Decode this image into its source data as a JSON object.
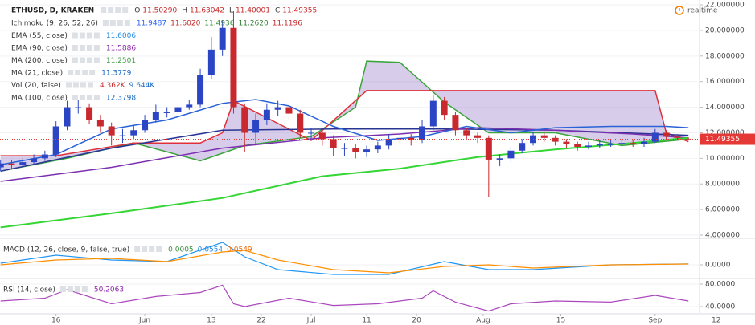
{
  "status": "realtime",
  "chart_data": [
    {
      "type": "candlestick",
      "title": "ETHUSD, D, KRAKEN",
      "ohlc": [
        {
          "label": "O",
          "value": "11.50290"
        },
        {
          "label": "H",
          "value": "11.63042"
        },
        {
          "label": "L",
          "value": "11.40001"
        },
        {
          "label": "C",
          "value": "11.49355"
        }
      ],
      "open": [
        9.3,
        9.6,
        9.5,
        9.7,
        10.0,
        10.3,
        12.5,
        14.0,
        14.0,
        13.0,
        12.5,
        11.8,
        11.8,
        12.2,
        13.0,
        13.6,
        13.6,
        14.0,
        14.2,
        16.5,
        18.5,
        20.2,
        14.0,
        12.0,
        13.0,
        13.8,
        14.0,
        13.5,
        12.0,
        12.0,
        11.5,
        10.8,
        10.8,
        10.5,
        10.7,
        11.0,
        11.5,
        11.6,
        11.4,
        12.5,
        14.5,
        13.4,
        12.2,
        11.8,
        11.6,
        9.9,
        10.0,
        10.6,
        11.2,
        11.8,
        11.6,
        11.3,
        11.1,
        10.9,
        11.0,
        11.1,
        11.1,
        11.2,
        11.1,
        11.3,
        12.0,
        11.7,
        11.5029
      ],
      "high": [
        9.9,
        9.9,
        10.0,
        10.3,
        10.6,
        12.9,
        14.5,
        14.6,
        14.3,
        13.4,
        12.8,
        12.3,
        12.6,
        13.4,
        14.2,
        14.0,
        14.3,
        14.6,
        17.0,
        19.5,
        20.8,
        21.5,
        14.3,
        13.5,
        14.3,
        14.5,
        14.3,
        13.8,
        12.4,
        12.2,
        11.8,
        11.2,
        11.1,
        11.0,
        11.3,
        11.9,
        12.0,
        11.9,
        13.0,
        15.0,
        14.8,
        13.6,
        12.4,
        12.0,
        11.8,
        10.3,
        10.9,
        11.5,
        12.1,
        12.0,
        11.8,
        11.5,
        11.3,
        11.3,
        11.4,
        11.4,
        11.4,
        11.4,
        11.6,
        12.3,
        12.2,
        11.9,
        11.63042
      ],
      "low": [
        9.0,
        9.2,
        9.3,
        9.5,
        9.8,
        10.1,
        12.2,
        13.5,
        12.7,
        12.0,
        11.0,
        11.2,
        11.5,
        12.0,
        12.8,
        13.2,
        13.3,
        13.8,
        14.0,
        16.2,
        18.0,
        13.5,
        10.5,
        11.0,
        12.6,
        13.3,
        13.0,
        11.6,
        11.5,
        11.0,
        10.2,
        10.2,
        10.0,
        10.1,
        10.4,
        10.7,
        11.2,
        11.0,
        11.2,
        12.2,
        13.0,
        11.8,
        11.4,
        11.2,
        7.0,
        9.4,
        9.7,
        10.4,
        11.0,
        11.3,
        11.0,
        10.8,
        10.6,
        10.7,
        10.8,
        10.9,
        10.9,
        10.9,
        10.9,
        11.2,
        11.4,
        11.4,
        11.40001
      ],
      "close": [
        9.6,
        9.5,
        9.7,
        10.0,
        10.3,
        12.5,
        14.0,
        14.0,
        13.0,
        12.5,
        11.8,
        11.8,
        12.2,
        13.0,
        13.6,
        13.6,
        14.0,
        14.2,
        16.5,
        18.5,
        20.2,
        14.0,
        12.0,
        13.0,
        13.8,
        14.0,
        13.5,
        12.0,
        12.0,
        11.5,
        10.8,
        10.8,
        10.5,
        10.7,
        11.0,
        11.5,
        11.6,
        11.4,
        12.5,
        14.5,
        13.4,
        12.2,
        11.8,
        11.6,
        9.9,
        10.0,
        10.6,
        11.2,
        11.8,
        11.6,
        11.3,
        11.1,
        10.9,
        11.0,
        11.1,
        11.1,
        11.2,
        11.1,
        11.3,
        12.0,
        11.7,
        11.6,
        11.49355
      ],
      "up_color": "#2b45c4",
      "down_color": "#c8282e",
      "last_color": "#e53935",
      "ylim": [
        3.81,
        22.38
      ],
      "yticks": [
        {
          "value": 22,
          "label": "22.000000"
        },
        {
          "value": 20,
          "label": "20.000000"
        },
        {
          "value": 18,
          "label": "18.000000"
        },
        {
          "value": 16,
          "label": "16.000000"
        },
        {
          "value": 14,
          "label": "14.000000"
        },
        {
          "value": 12,
          "label": "12.000000"
        },
        {
          "value": 10,
          "label": "10.000000"
        },
        {
          "value": 8,
          "label": "8.000000"
        },
        {
          "value": 6,
          "label": "6.000000"
        },
        {
          "value": 4,
          "label": "4.000000"
        }
      ],
      "xlim": [
        -0.05,
        63
      ],
      "xticks": [
        {
          "value": 5,
          "label": "16"
        },
        {
          "value": 13,
          "label": "Jun"
        },
        {
          "value": 19,
          "label": "13"
        },
        {
          "value": 23.5,
          "label": "22"
        },
        {
          "value": 28,
          "label": "Jul"
        },
        {
          "value": 33,
          "label": "11"
        },
        {
          "value": 37.5,
          "label": "20"
        },
        {
          "value": 43.5,
          "label": "Aug"
        },
        {
          "value": 50.5,
          "label": "15"
        },
        {
          "value": 59,
          "label": "Sep"
        },
        {
          "value": 64.5,
          "label": "12"
        }
      ],
      "grid": true,
      "indicators": [
        {
          "name": "Ichimoku (9, 26, 52, 26)",
          "cloud": "#9b7fc9",
          "readouts": [
            {
              "text": "11.9487",
              "color": "#2962ff"
            },
            {
              "text": "11.6020",
              "color": "#c62828"
            },
            {
              "text": "11.4936",
              "color": "#388e3c"
            },
            {
              "text": "11.2620",
              "color": "#2e7d32"
            },
            {
              "text": "11.1196",
              "color": "#c62828"
            }
          ],
          "lines": [
            {
              "color": "#3aa53a",
              "x": [
                0,
                6,
                12,
                18,
                22,
                28,
                32,
                33,
                36,
                40,
                44,
                50,
                56,
                62
              ],
              "values": [
                9.0,
                10.0,
                11.2,
                9.8,
                11.0,
                11.7,
                14,
                17.6,
                17.5,
                14.4,
                12.0,
                12.0,
                11.0,
                11.5
              ]
            },
            {
              "color": "#e0303a",
              "x": [
                0,
                5,
                12,
                18,
                20,
                21,
                28,
                33,
                38,
                44,
                52,
                59,
                60,
                62
              ],
              "values": [
                10.2,
                10.2,
                11.2,
                11.2,
                12,
                14.5,
                11.4,
                15.3,
                15.3,
                15.3,
                15.3,
                15.3,
                12,
                11.3
              ]
            }
          ]
        },
        {
          "name": "EMA (55, close)",
          "readouts": [
            {
              "text": "11.6006",
              "color": "#1e88e5"
            }
          ],
          "lines": [
            {
              "color": "#283593",
              "x": [
                0,
                10,
                20,
                30,
                40,
                50,
                62
              ],
              "values": [
                9.0,
                10.8,
                12.2,
                12.3,
                12.3,
                12.2,
                11.8
              ]
            }
          ]
        },
        {
          "name": "EMA (90, close)",
          "readouts": [
            {
              "text": "11.5886",
              "color": "#8e24aa"
            }
          ],
          "lines": [
            {
              "color": "#7b2fb0",
              "x": [
                0,
                10,
                20,
                29,
                36,
                43,
                50,
                57,
                62
              ],
              "values": [
                8.2,
                9.3,
                10.8,
                11.6,
                11.9,
                12.4,
                12.2,
                11.9,
                11.6
              ]
            }
          ]
        },
        {
          "name": "MA (200, close)",
          "readouts": [
            {
              "text": "11.2501",
              "color": "#43a047"
            }
          ],
          "lines": [
            {
              "color": "#35d535",
              "x": [
                0,
                10,
                20,
                29,
                36,
                43,
                50,
                57,
                62
              ],
              "values": [
                4.6,
                5.7,
                6.9,
                8.6,
                9.2,
                10.1,
                10.7,
                11.2,
                11.6
              ]
            }
          ]
        },
        {
          "name": "MA (21, close)",
          "readouts": [
            {
              "text": "11.3779",
              "color": "#1565c0"
            }
          ],
          "lines": [
            {
              "color": "#2962d8",
              "x": [
                0,
                5,
                10,
                15,
                20,
                23,
                26,
                30,
                34,
                38,
                42,
                46,
                50,
                55,
                60,
                62
              ],
              "values": [
                9.5,
                10.3,
                12.3,
                13.0,
                14.3,
                14.6,
                14.1,
                12.5,
                11.4,
                11.7,
                12.5,
                12.0,
                12.4,
                12.5,
                12.5,
                12.4
              ]
            }
          ]
        },
        {
          "name": "Vol (20, false)",
          "readouts": [
            {
              "text": "4.362K",
              "color": "#c62828"
            },
            {
              "text": "9.644K",
              "color": "#1565c0"
            }
          ],
          "lines": []
        },
        {
          "name": "MA (100, close)",
          "readouts": [
            {
              "text": "12.3798",
              "color": "#1565c0"
            }
          ],
          "lines": []
        }
      ]
    },
    {
      "type": "line",
      "title": "MACD (12, 26, close, 9, false, true)",
      "readouts": [
        {
          "text": "0.0005",
          "color": "#388e3c"
        },
        {
          "text": "0.0554",
          "color": "#1e88e5"
        },
        {
          "text": "0.0549",
          "color": "#ef6c00"
        }
      ],
      "xlim": [
        -0.05,
        63
      ],
      "ylim": [
        -0.8,
        1.6
      ],
      "yticks": [
        {
          "value": 0,
          "label": "0.0000"
        }
      ],
      "grid": true,
      "series": [
        {
          "color": "#2196f3",
          "x": [
            0,
            5,
            10,
            15,
            20,
            22,
            25,
            30,
            35,
            40,
            44,
            48,
            55,
            62
          ],
          "values": [
            0.1,
            0.6,
            0.3,
            0.2,
            1.4,
            0.5,
            -0.3,
            -0.6,
            -0.6,
            0.2,
            -0.3,
            -0.3,
            0.0,
            0.06
          ]
        },
        {
          "color": "#ff8f00",
          "x": [
            0,
            5,
            10,
            15,
            20,
            22,
            25,
            30,
            35,
            40,
            44,
            48,
            55,
            62
          ],
          "values": [
            0.0,
            0.3,
            0.4,
            0.2,
            0.8,
            0.9,
            0.3,
            -0.3,
            -0.5,
            -0.1,
            0.0,
            -0.2,
            0.0,
            0.05
          ]
        }
      ]
    },
    {
      "type": "line",
      "title": "RSI (14, close)",
      "readouts": [
        {
          "text": "50.2063",
          "color": "#8e24aa"
        }
      ],
      "xlim": [
        -0.05,
        63
      ],
      "ylim": [
        28.6,
        88.6
      ],
      "yticks": [
        {
          "value": 80,
          "label": "80.0000"
        },
        {
          "value": 40,
          "label": "40.0000"
        }
      ],
      "grid": true,
      "series": [
        {
          "color": "#ab47bc",
          "x": [
            0,
            4,
            6,
            10,
            14,
            18,
            20,
            21,
            22,
            26,
            30,
            34,
            38,
            39,
            41,
            44,
            46,
            50,
            55,
            59,
            62
          ],
          "values": [
            50,
            55,
            70,
            45,
            58,
            65,
            78,
            45,
            40,
            55,
            42,
            45,
            55,
            68,
            48,
            32,
            45,
            50,
            48,
            60,
            50
          ]
        }
      ]
    }
  ]
}
